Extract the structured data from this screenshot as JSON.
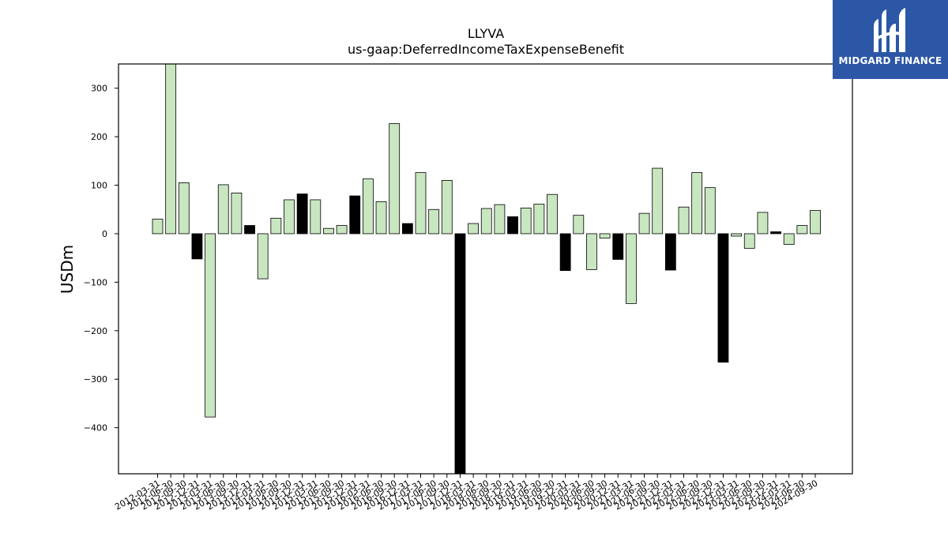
{
  "brand": {
    "name": "MIDGARD FINANCE",
    "color": "#2b57a6"
  },
  "chart_data": {
    "type": "bar",
    "title": "LLYVA",
    "subtitle": "us-gaap:DeferredIncomeTaxExpenseBenefit",
    "ylabel": "USDm",
    "xlabel": "",
    "ylim": [
      -495,
      350
    ],
    "yticks": [
      300,
      200,
      100,
      0,
      -100,
      -200,
      -300,
      -400
    ],
    "ytick_labels": [
      "300",
      "200",
      "100",
      "0",
      "−100",
      "−200",
      "−300",
      "−400"
    ],
    "colors": {
      "quarter": "#c8e6c0",
      "annual": "#000000",
      "edge": "#000000"
    },
    "categories": [
      "2012-03-31",
      "2012-06-30",
      "2012-09-30",
      "2012-12-31",
      "2013-03-31",
      "2013-06-30",
      "2013-09-30",
      "2013-12-31",
      "2014-03-31",
      "2014-06-30",
      "2014-09-30",
      "2014-12-31",
      "2015-03-31",
      "2015-06-30",
      "2015-09-30",
      "2015-12-31",
      "2016-03-31",
      "2016-06-30",
      "2016-09-30",
      "2016-12-31",
      "2017-03-31",
      "2017-06-30",
      "2017-09-30",
      "2017-12-31",
      "2018-03-31",
      "2018-06-30",
      "2018-09-30",
      "2018-12-31",
      "2019-03-31",
      "2019-06-30",
      "2019-09-30",
      "2019-12-31",
      "2020-03-31",
      "2020-06-30",
      "2020-09-30",
      "2020-12-31",
      "2021-03-31",
      "2021-06-30",
      "2021-09-30",
      "2021-12-31",
      "2022-03-31",
      "2022-06-30",
      "2022-09-30",
      "2022-12-31",
      "2023-03-31",
      "2023-06-30",
      "2023-09-30",
      "2023-12-31",
      "2024-03-31",
      "2024-06-30",
      "2024-09-30"
    ],
    "values": [
      30,
      370,
      105,
      -52,
      -378,
      101,
      84,
      17,
      -93,
      32,
      70,
      82,
      70,
      11,
      17,
      78,
      113,
      66,
      227,
      21,
      126,
      50,
      110,
      -520,
      21,
      52,
      60,
      35,
      53,
      61,
      81,
      -76,
      38,
      -74,
      -9,
      -53,
      -144,
      42,
      135,
      -75,
      55,
      126,
      95,
      -265,
      -5,
      -30,
      44,
      4,
      -22,
      17,
      48
    ],
    "annual": [
      false,
      false,
      false,
      true,
      false,
      false,
      false,
      true,
      false,
      false,
      false,
      true,
      false,
      false,
      false,
      true,
      false,
      false,
      false,
      true,
      false,
      false,
      false,
      true,
      false,
      false,
      false,
      true,
      false,
      false,
      false,
      true,
      false,
      false,
      false,
      true,
      false,
      false,
      false,
      true,
      false,
      false,
      false,
      true,
      false,
      false,
      false,
      true,
      false,
      false,
      false
    ]
  }
}
